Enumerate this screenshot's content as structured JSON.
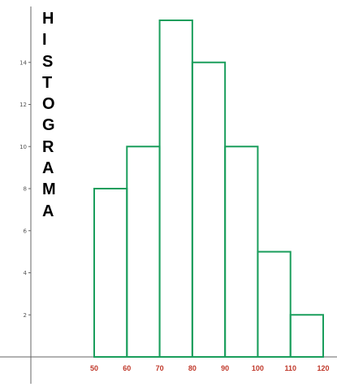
{
  "chart_data": {
    "type": "bar",
    "title_letters": [
      "H",
      "I",
      "S",
      "T",
      "O",
      "G",
      "R",
      "A",
      "M",
      "A"
    ],
    "bins": [
      {
        "from": 50,
        "to": 60,
        "count": 8
      },
      {
        "from": 60,
        "to": 70,
        "count": 10
      },
      {
        "from": 70,
        "to": 80,
        "count": 16
      },
      {
        "from": 80,
        "to": 90,
        "count": 14
      },
      {
        "from": 90,
        "to": 100,
        "count": 10
      },
      {
        "from": 100,
        "to": 110,
        "count": 5
      },
      {
        "from": 110,
        "to": 120,
        "count": 2
      }
    ],
    "xticks": [
      50,
      60,
      70,
      80,
      90,
      100,
      110,
      120
    ],
    "yticks": [
      2,
      4,
      6,
      8,
      10,
      12,
      14
    ],
    "xlim": [
      50,
      120
    ],
    "ylim": [
      0,
      16
    ],
    "grid": false,
    "bar_color": "#1a9e5c",
    "axis_color": "#666666",
    "xtick_color": "#c0392b"
  }
}
